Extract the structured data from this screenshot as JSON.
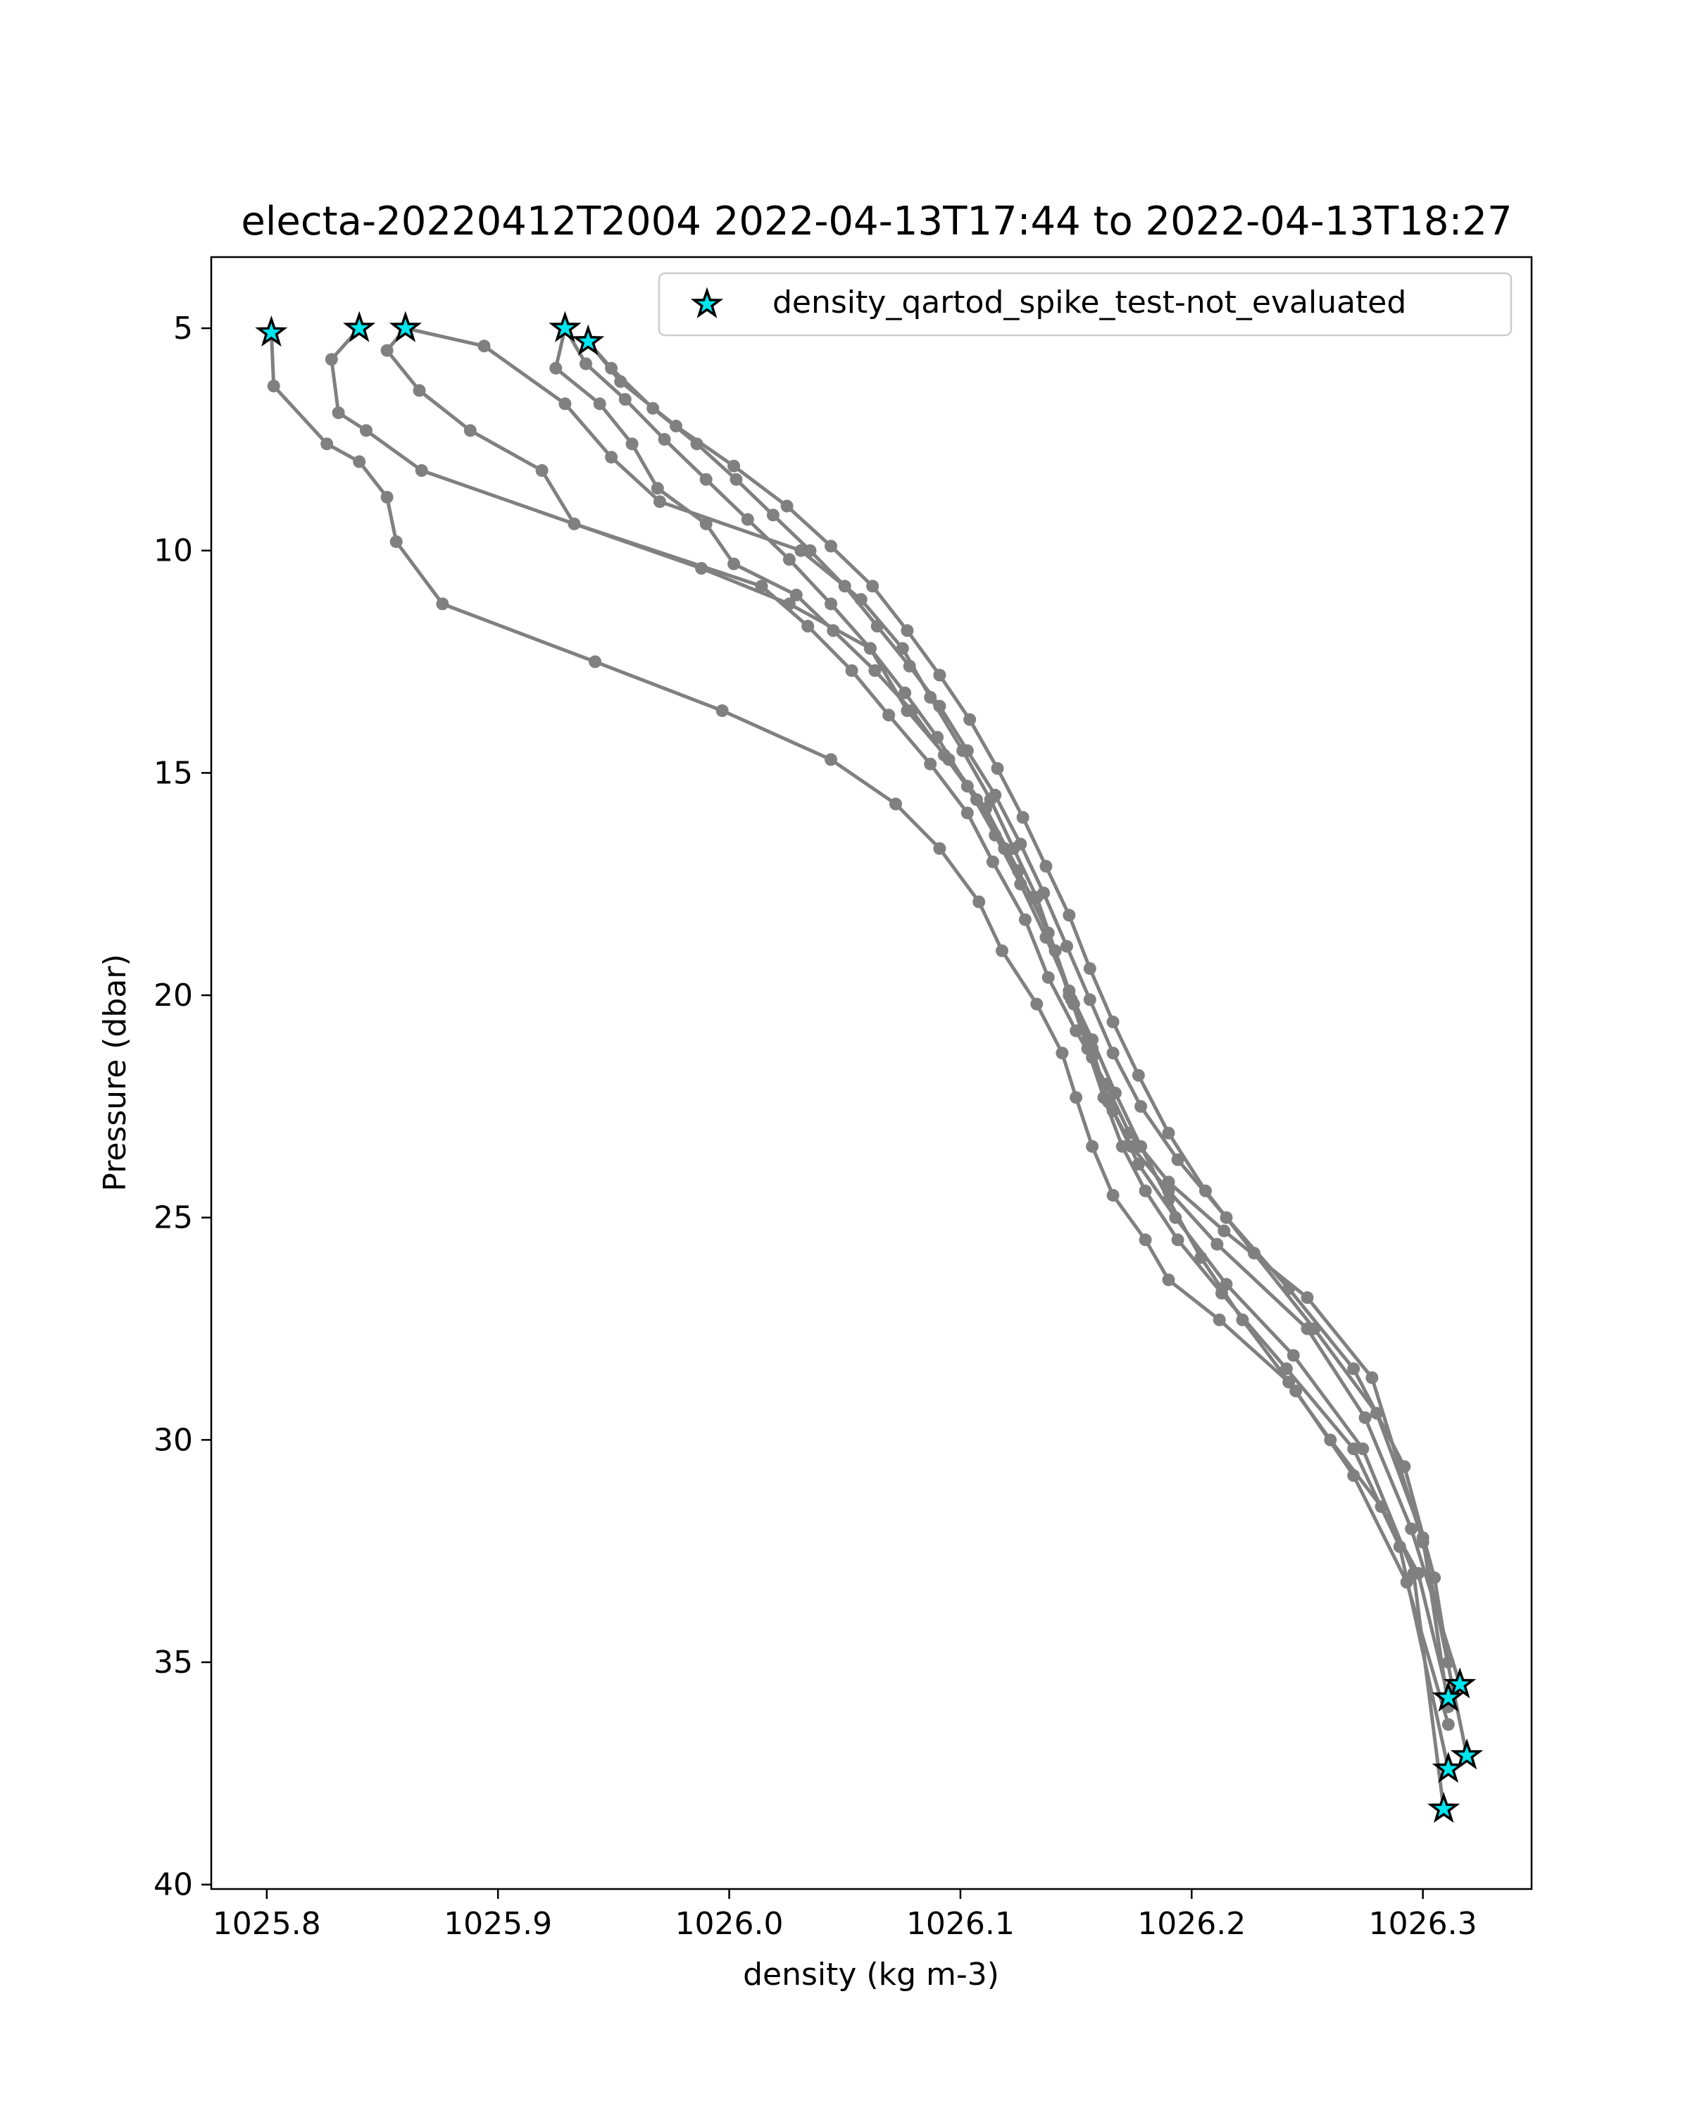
{
  "chart_data": {
    "type": "line",
    "title": "electa-20220412T2004 2022-04-13T17:44 to 2022-04-13T18:27",
    "xlabel": "density (kg m-3)",
    "ylabel": "Pressure (dbar)",
    "xlim": [
      1025.776,
      1026.347
    ],
    "ylim": [
      40.1,
      3.4
    ],
    "y_inverted": true,
    "grid": false,
    "legend_position": "top-right",
    "x_ticks": [
      1025.8,
      1025.9,
      1026.0,
      1026.1,
      1026.2,
      1026.3
    ],
    "x_tick_labels": [
      "1025.8",
      "1025.9",
      "1026.0",
      "1026.1",
      "1026.2",
      "1026.3"
    ],
    "y_ticks": [
      5,
      10,
      15,
      20,
      25,
      30,
      35,
      40
    ],
    "y_tick_labels": [
      "5",
      "10",
      "15",
      "20",
      "25",
      "30",
      "35",
      "40"
    ],
    "line_color": "#808080",
    "flag_color": "#00e5ee",
    "flag_series": {
      "name": "density_qartod_spike_test-not_evaluated",
      "points": [
        {
          "x": 1025.802,
          "y": 5.1
        },
        {
          "x": 1025.84,
          "y": 5.0
        },
        {
          "x": 1025.86,
          "y": 5.0
        },
        {
          "x": 1025.929,
          "y": 5.0
        },
        {
          "x": 1025.939,
          "y": 5.3
        },
        {
          "x": 1026.316,
          "y": 35.5
        },
        {
          "x": 1026.311,
          "y": 35.8
        },
        {
          "x": 1026.319,
          "y": 37.1
        },
        {
          "x": 1026.311,
          "y": 37.4
        },
        {
          "x": 1026.309,
          "y": 38.3
        }
      ]
    },
    "profiles": [
      {
        "x": [
          1025.802,
          1025.803,
          1025.826,
          1025.84,
          1025.852,
          1025.856,
          1025.876,
          1025.942,
          1025.997,
          1026.044,
          1026.072,
          1026.091,
          1026.108,
          1026.118,
          1026.133,
          1026.144,
          1026.15,
          1026.157,
          1026.166,
          1026.18,
          1026.19,
          1026.212,
          1026.242,
          1026.26,
          1026.282,
          1026.298,
          1026.311
        ],
        "y": [
          5.1,
          6.3,
          7.6,
          8.0,
          8.8,
          9.8,
          11.2,
          12.5,
          13.6,
          14.7,
          15.7,
          16.7,
          17.9,
          19.0,
          20.2,
          21.3,
          22.3,
          23.4,
          24.5,
          25.5,
          26.4,
          27.3,
          28.7,
          30.0,
          31.5,
          33.0,
          35.8
        ]
      },
      {
        "x": [
          1025.84,
          1025.828,
          1025.831,
          1025.843,
          1025.867,
          1025.988,
          1026.026,
          1026.061,
          1026.077,
          1026.095,
          1026.111,
          1026.125,
          1026.138,
          1026.147,
          1026.157,
          1026.164,
          1026.174,
          1026.19,
          1026.211,
          1026.25,
          1026.275,
          1026.295,
          1026.316
        ],
        "y": [
          5.0,
          5.7,
          6.9,
          7.3,
          8.2,
          10.4,
          11.2,
          12.2,
          13.6,
          14.7,
          15.8,
          17.2,
          18.6,
          20.0,
          21.2,
          22.4,
          23.4,
          24.4,
          25.6,
          27.5,
          29.5,
          32.0,
          35.5
        ]
      },
      {
        "x": [
          1025.86,
          1025.852,
          1025.866,
          1025.888,
          1025.919,
          1025.933,
          1026.014,
          1026.034,
          1026.053,
          1026.069,
          1026.087,
          1026.103,
          1026.114,
          1026.128,
          1026.138,
          1026.15,
          1026.163,
          1026.173,
          1026.19,
          1026.214,
          1026.25,
          1026.278,
          1026.3,
          1026.319
        ],
        "y": [
          5.0,
          5.5,
          6.4,
          7.3,
          8.2,
          9.4,
          10.8,
          11.7,
          12.7,
          13.7,
          14.8,
          15.9,
          17.0,
          18.3,
          19.6,
          20.8,
          22.0,
          23.1,
          24.2,
          25.3,
          26.8,
          28.6,
          32.3,
          37.1
        ]
      },
      {
        "x": [
          1025.86,
          1025.894,
          1025.929,
          1025.949,
          1025.97,
          1026.031,
          1026.057,
          1026.075,
          1026.087,
          1026.101,
          1026.113,
          1026.123,
          1026.133,
          1026.141,
          1026.148,
          1026.155,
          1026.162,
          1026.17,
          1026.18,
          1026.194,
          1026.213,
          1026.241,
          1026.27,
          1026.29,
          1026.311
        ],
        "y": [
          5.0,
          5.4,
          6.7,
          7.9,
          8.9,
          10.0,
          11.1,
          12.2,
          13.3,
          14.5,
          15.6,
          16.7,
          17.8,
          19.0,
          20.1,
          21.2,
          22.3,
          23.4,
          24.4,
          25.5,
          26.7,
          28.4,
          30.2,
          32.4,
          37.4
        ]
      },
      {
        "x": [
          1025.929,
          1025.925,
          1025.944,
          1025.958,
          1025.969,
          1025.99,
          1026.002,
          1026.029,
          1026.045,
          1026.063,
          1026.079,
          1026.093,
          1026.107,
          1026.119,
          1026.131,
          1026.141,
          1026.149,
          1026.157,
          1026.166,
          1026.177,
          1026.193,
          1026.215,
          1026.244,
          1026.274,
          1026.296,
          1026.309
        ],
        "y": [
          5.0,
          5.9,
          6.7,
          7.6,
          8.6,
          9.4,
          10.3,
          11.0,
          11.8,
          12.7,
          13.6,
          14.6,
          15.6,
          16.7,
          17.8,
          19.0,
          20.2,
          21.4,
          22.6,
          23.8,
          25.0,
          26.5,
          28.1,
          30.2,
          33.0,
          38.3
        ]
      },
      {
        "x": [
          1025.939,
          1025.949,
          1025.967,
          1025.986,
          1026.003,
          1026.019,
          1026.035,
          1026.05,
          1026.064,
          1026.078,
          1026.091,
          1026.103,
          1026.115,
          1026.126,
          1026.136,
          1026.146,
          1026.156,
          1026.166,
          1026.178,
          1026.194,
          1026.215,
          1026.242,
          1026.27,
          1026.292,
          1026.305,
          1026.311
        ],
        "y": [
          5.3,
          5.9,
          6.8,
          7.6,
          8.4,
          9.2,
          10.0,
          10.8,
          11.7,
          12.6,
          13.5,
          14.5,
          15.5,
          16.6,
          17.7,
          18.9,
          20.1,
          21.3,
          22.5,
          23.7,
          25.0,
          26.6,
          28.4,
          30.6,
          33.1,
          35.0
        ]
      },
      {
        "x": [
          1025.939,
          1025.953,
          1025.977,
          1026.002,
          1026.025,
          1026.044,
          1026.062,
          1026.077,
          1026.091,
          1026.104,
          1026.116,
          1026.127,
          1026.137,
          1026.147,
          1026.156,
          1026.166,
          1026.177,
          1026.19,
          1026.206,
          1026.227,
          1026.253,
          1026.28,
          1026.3,
          1026.311
        ],
        "y": [
          5.3,
          6.2,
          7.2,
          8.1,
          9.0,
          9.9,
          10.8,
          11.8,
          12.8,
          13.8,
          14.9,
          16.0,
          17.1,
          18.2,
          19.4,
          20.6,
          21.8,
          23.1,
          24.4,
          25.8,
          27.5,
          29.4,
          32.2,
          36.0
        ]
      },
      {
        "x": [
          1025.929,
          1025.938,
          1025.955,
          1025.972,
          1025.99,
          1026.008,
          1026.026,
          1026.044,
          1026.061,
          1026.076,
          1026.09,
          1026.103,
          1026.115,
          1026.126,
          1026.137,
          1026.147,
          1026.157,
          1026.167,
          1026.178,
          1026.19,
          1026.204,
          1026.222,
          1026.245,
          1026.27,
          1026.293,
          1026.311
        ],
        "y": [
          5.0,
          5.8,
          6.6,
          7.5,
          8.4,
          9.3,
          10.2,
          11.2,
          12.2,
          13.2,
          14.2,
          15.3,
          16.4,
          17.5,
          18.7,
          19.9,
          21.0,
          22.2,
          23.4,
          24.6,
          25.9,
          27.3,
          28.9,
          30.8,
          33.2,
          36.4
        ]
      }
    ]
  }
}
